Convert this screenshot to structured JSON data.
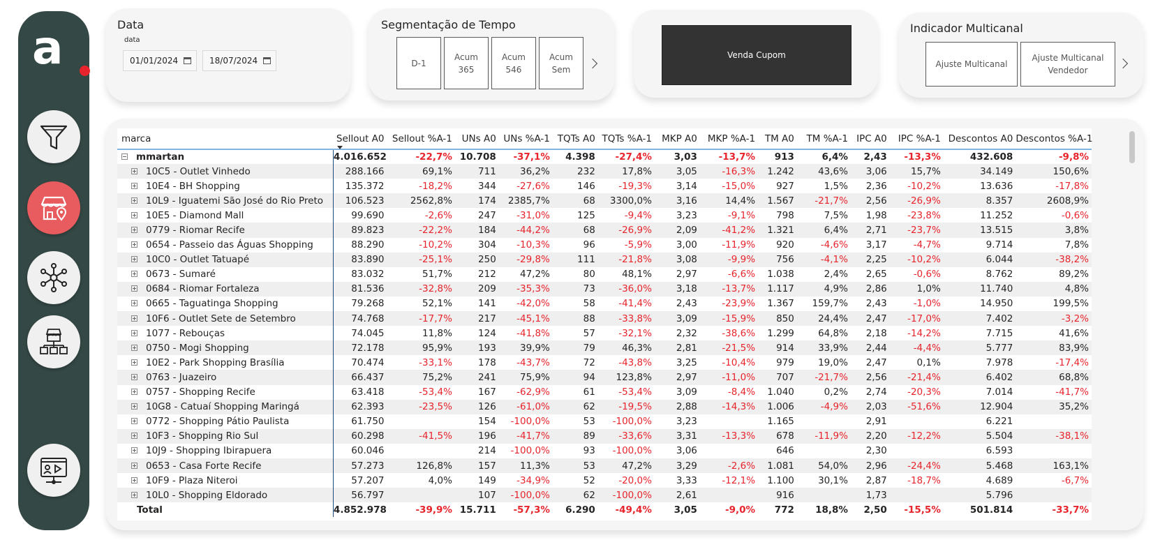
{
  "logo": {
    "letter": "a"
  },
  "nav": [
    {
      "name": "filter-icon"
    },
    {
      "name": "store-location-icon"
    },
    {
      "name": "network-icon"
    },
    {
      "name": "stores-hierarchy-icon"
    },
    {
      "name": "presentation-icon"
    }
  ],
  "date_card": {
    "title": "Data",
    "subtitle": "data",
    "start": "01/01/2024",
    "end": "18/07/2024"
  },
  "seg_card": {
    "title": "Segmentação de Tempo",
    "buttons": [
      "D-1",
      "Acum\n365",
      "Acum\n546",
      "Acum\nSem"
    ]
  },
  "venda_card": {
    "button": "Venda Cupom"
  },
  "multi_card": {
    "title": "Indicador Multicanal",
    "buttons": [
      "Ajuste Multicanal",
      "Ajuste Multicanal\nVendedor"
    ]
  },
  "table": {
    "columns": [
      "marca",
      "Sellout A0",
      "Sellout %A-1",
      "UNs A0",
      "UNs %A-1",
      "TQTs A0",
      "TQTs %A-1",
      "MKP A0",
      "MKP %A-1",
      "TM A0",
      "TM %A-1",
      "IPC A0",
      "IPC %A-1",
      "Descontos A0",
      "Descontos %A-1"
    ],
    "group": [
      "mmartan",
      "4.016.652",
      "-22,7%",
      "10.708",
      "-37,1%",
      "4.398",
      "-27,4%",
      "3,03",
      "-13,7%",
      "913",
      "6,4%",
      "2,43",
      "-13,3%",
      "432.608",
      "-9,8%"
    ],
    "rows": [
      [
        "10C5 - Outlet Vinhedo",
        "288.166",
        "69,1%",
        "711",
        "36,2%",
        "232",
        "17,8%",
        "3,05",
        "-16,3%",
        "1.242",
        "43,6%",
        "3,06",
        "15,7%",
        "34.149",
        "150,6%"
      ],
      [
        "10E4 - BH Shopping",
        "135.372",
        "-18,2%",
        "344",
        "-27,6%",
        "146",
        "-19,3%",
        "3,14",
        "-15,0%",
        "927",
        "1,5%",
        "2,36",
        "-10,2%",
        "13.636",
        "-17,8%"
      ],
      [
        "10L9 - Iguatemi São José do Rio Preto",
        "106.523",
        "2562,8%",
        "174",
        "2385,7%",
        "68",
        "3300,0%",
        "3,16",
        "14,4%",
        "1.567",
        "-21,7%",
        "2,56",
        "-26,9%",
        "8.357",
        "2608,9%"
      ],
      [
        "10E5 - Diamond Mall",
        "99.690",
        "-2,6%",
        "247",
        "-31,0%",
        "125",
        "-9,4%",
        "3,23",
        "-9,1%",
        "798",
        "7,5%",
        "1,98",
        "-23,8%",
        "11.252",
        "-0,6%"
      ],
      [
        "0779 - Riomar Recife",
        "89.823",
        "-22,2%",
        "184",
        "-44,2%",
        "68",
        "-26,9%",
        "2,09",
        "-41,2%",
        "1.321",
        "6,4%",
        "2,71",
        "-23,7%",
        "13.515",
        "3,8%"
      ],
      [
        "0654 - Passeio das Águas Shopping",
        "88.290",
        "-10,2%",
        "304",
        "-10,3%",
        "96",
        "-5,9%",
        "3,00",
        "-11,9%",
        "920",
        "-4,6%",
        "3,17",
        "-4,7%",
        "9.714",
        "7,8%"
      ],
      [
        "10C0 - Outlet Tatuapé",
        "83.890",
        "-25,1%",
        "250",
        "-29,8%",
        "111",
        "-21,8%",
        "3,08",
        "-9,9%",
        "756",
        "-4,1%",
        "2,25",
        "-10,2%",
        "6.044",
        "-38,2%"
      ],
      [
        "0673 - Sumaré",
        "83.032",
        "51,7%",
        "212",
        "47,2%",
        "80",
        "48,1%",
        "2,97",
        "-6,6%",
        "1.038",
        "2,4%",
        "2,65",
        "-0,6%",
        "8.762",
        "89,2%"
      ],
      [
        "0684 - Riomar Fortaleza",
        "81.536",
        "-32,8%",
        "209",
        "-35,3%",
        "73",
        "-36,0%",
        "3,18",
        "-13,7%",
        "1.117",
        "4,9%",
        "2,86",
        "1,0%",
        "11.740",
        "4,8%"
      ],
      [
        "0665 - Taguatinga Shopping",
        "79.268",
        "52,1%",
        "141",
        "-42,0%",
        "58",
        "-41,4%",
        "2,43",
        "-23,9%",
        "1.367",
        "159,7%",
        "2,43",
        "-1,0%",
        "14.950",
        "199,5%"
      ],
      [
        "10F6 - Outlet Sete de Setembro",
        "74.768",
        "-17,7%",
        "217",
        "-45,1%",
        "88",
        "-33,8%",
        "3,09",
        "-15,9%",
        "850",
        "24,4%",
        "2,47",
        "-17,0%",
        "7.402",
        "-3,2%"
      ],
      [
        "1077 - Rebouças",
        "74.045",
        "11,8%",
        "124",
        "-41,8%",
        "57",
        "-32,1%",
        "2,32",
        "-38,6%",
        "1.299",
        "64,8%",
        "2,18",
        "-14,2%",
        "7.715",
        "41,6%"
      ],
      [
        "0750 - Mogi Shopping",
        "72.178",
        "95,9%",
        "193",
        "39,9%",
        "79",
        "46,3%",
        "2,81",
        "-21,5%",
        "914",
        "33,9%",
        "2,44",
        "-4,4%",
        "5.777",
        "83,9%"
      ],
      [
        "10E2 - Park Shopping Brasília",
        "70.474",
        "-33,1%",
        "178",
        "-43,7%",
        "72",
        "-43,8%",
        "3,25",
        "-10,4%",
        "979",
        "19,0%",
        "2,47",
        "0,1%",
        "7.978",
        "-17,4%"
      ],
      [
        "0763 - Juazeiro",
        "66.437",
        "75,2%",
        "241",
        "75,9%",
        "94",
        "123,8%",
        "2,97",
        "-11,0%",
        "707",
        "-21,7%",
        "2,56",
        "-21,4%",
        "6.402",
        "68,8%"
      ],
      [
        "0757 - Shopping Recife",
        "63.418",
        "-53,4%",
        "167",
        "-62,9%",
        "61",
        "-53,4%",
        "3,09",
        "-8,4%",
        "1.040",
        "0,2%",
        "2,74",
        "-20,3%",
        "7.014",
        "-41,7%"
      ],
      [
        "10G8 - Catuaí Shopping Maringá",
        "62.393",
        "-23,5%",
        "126",
        "-61,0%",
        "62",
        "-19,5%",
        "2,88",
        "-14,3%",
        "1.006",
        "-4,9%",
        "2,03",
        "-51,6%",
        "12.904",
        "35,2%"
      ],
      [
        "0772 - Shopping Pátio Paulista",
        "61.750",
        "",
        "154",
        "-100,0%",
        "53",
        "-100,0%",
        "3,23",
        "",
        "1.165",
        "",
        "2,91",
        "",
        "6.221",
        ""
      ],
      [
        "10F3 - Shopping Rio Sul",
        "60.298",
        "-41,5%",
        "196",
        "-41,7%",
        "89",
        "-33,6%",
        "3,31",
        "-13,3%",
        "678",
        "-11,9%",
        "2,20",
        "-12,2%",
        "5.504",
        "-38,1%"
      ],
      [
        "10J9 - Shopping Ibirapuera",
        "60.046",
        "",
        "214",
        "-100,0%",
        "93",
        "-100,0%",
        "3,06",
        "",
        "646",
        "",
        "2,30",
        "",
        "6.593",
        ""
      ],
      [
        "0653 - Casa Forte Recife",
        "57.273",
        "126,8%",
        "157",
        "11,3%",
        "53",
        "47,2%",
        "3,29",
        "-2,6%",
        "1.081",
        "54,0%",
        "2,96",
        "-24,4%",
        "5.468",
        "163,1%"
      ],
      [
        "10F9 - Plaza Niteroi",
        "57.207",
        "4,0%",
        "149",
        "-34,9%",
        "52",
        "-20,0%",
        "3,33",
        "-12,1%",
        "1.100",
        "30,1%",
        "2,87",
        "-18,7%",
        "4.689",
        "-6,7%"
      ],
      [
        "10L0 - Shopping Eldorado",
        "56.797",
        "",
        "107",
        "-100,0%",
        "62",
        "-100,0%",
        "2,61",
        "",
        "916",
        "",
        "1,73",
        "",
        "5.796",
        ""
      ]
    ],
    "total": [
      "Total",
      "4.852.978",
      "-39,9%",
      "15.711",
      "-57,3%",
      "6.290",
      "-49,4%",
      "3,05",
      "-9,0%",
      "772",
      "18,8%",
      "2,50",
      "-15,5%",
      "501.814",
      "-33,7%"
    ]
  }
}
